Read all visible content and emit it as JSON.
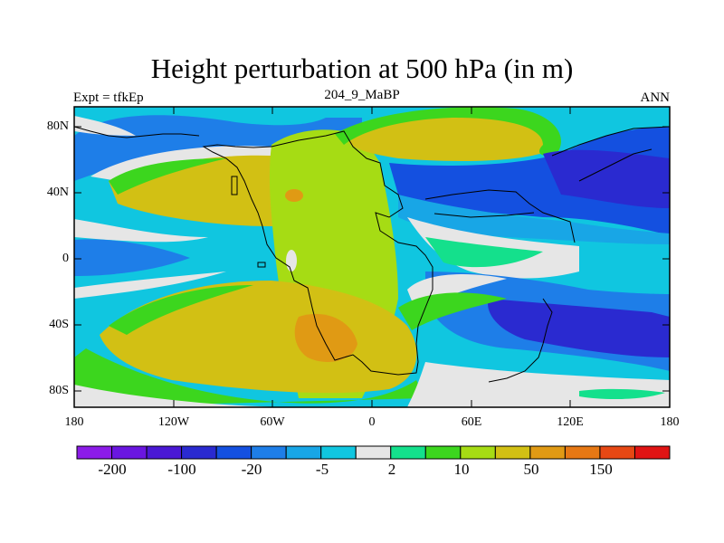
{
  "title": "Height perturbation at 500 hPa (in m)",
  "subtitle_left": "Expt = tfkEp",
  "subtitle_center": "204_9_MaBP",
  "subtitle_right": "ANN",
  "lat_labels": [
    "80N",
    "40N",
    "0",
    "40S",
    "80S"
  ],
  "lon_labels": [
    "180",
    "120W",
    "60W",
    "0",
    "60E",
    "120E",
    "180"
  ],
  "colorbar": {
    "colors": [
      "#8c1ce8",
      "#6a16e0",
      "#4a18d4",
      "#2a2ad0",
      "#1450e0",
      "#1e7ee8",
      "#18a6e6",
      "#10c6e0",
      "#e6e6e6",
      "#14e08c",
      "#3cd61e",
      "#a6dc14",
      "#d2c014",
      "#e09a14",
      "#e67814",
      "#e64814",
      "#e01414"
    ],
    "labels": [
      "-200",
      "-100",
      "-20",
      "-5",
      "2",
      "10",
      "50",
      "150"
    ]
  }
}
